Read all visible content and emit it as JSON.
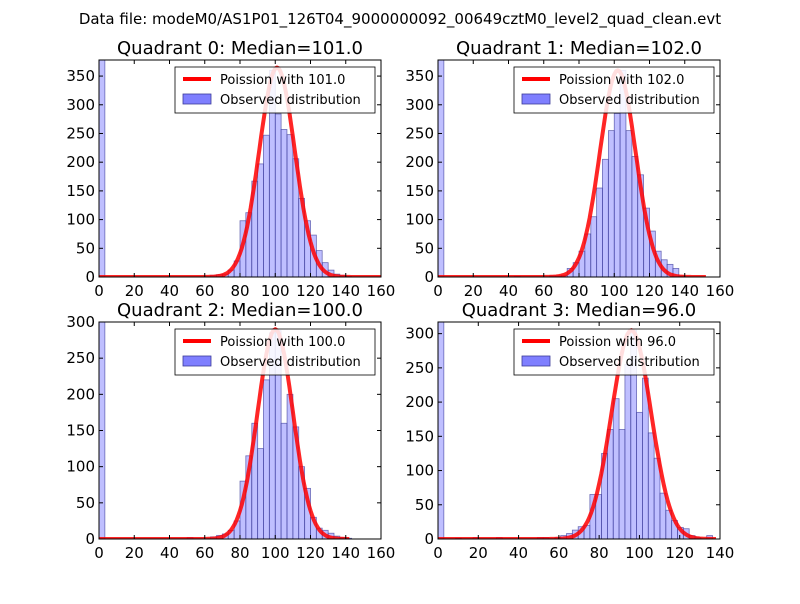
{
  "suptitle": "Data file: modeM0/AS1P01_126T04_9000000092_00649cztM0_level2_quad_clean.evt",
  "colors": {
    "bars": "#7f7fff",
    "bar_edge": "#3c3c9a",
    "curve": "#ff0000"
  },
  "chart_data": [
    {
      "type": "bar",
      "title": "Quadrant 0: Median=101.0",
      "xlim": [
        0,
        160
      ],
      "ylim": [
        0,
        378
      ],
      "xticks": [
        0,
        20,
        40,
        60,
        80,
        100,
        120,
        140,
        160
      ],
      "yticks": [
        0,
        50,
        100,
        150,
        200,
        250,
        300,
        350
      ],
      "bin_width": 3.33,
      "bins": [
        [
          0,
          400
        ],
        [
          63.3,
          3
        ],
        [
          66.7,
          4
        ],
        [
          70,
          5
        ],
        [
          73.3,
          12
        ],
        [
          76.7,
          28
        ],
        [
          80,
          98
        ],
        [
          83.3,
          112
        ],
        [
          86.7,
          167
        ],
        [
          90,
          197
        ],
        [
          93.3,
          247
        ],
        [
          96.7,
          360
        ],
        [
          100,
          284
        ],
        [
          103.3,
          257
        ],
        [
          106.7,
          248
        ],
        [
          110,
          206
        ],
        [
          113.3,
          137
        ],
        [
          116.7,
          98
        ],
        [
          120,
          73
        ],
        [
          123.3,
          46
        ],
        [
          126.7,
          25
        ],
        [
          130,
          12
        ],
        [
          133.3,
          5
        ],
        [
          136.7,
          3
        ],
        [
          140,
          1
        ]
      ],
      "curve": {
        "mean": 101.0,
        "peak": 365,
        "x_end": 160
      },
      "legend": {
        "curve_label": "Poission with 101.0",
        "bar_label": "Observed distribution",
        "position": "upper-right"
      }
    },
    {
      "type": "bar",
      "title": "Quadrant 1: Median=102.0",
      "xlim": [
        0,
        160
      ],
      "ylim": [
        0,
        378
      ],
      "xticks": [
        0,
        20,
        40,
        60,
        80,
        100,
        120,
        140,
        160
      ],
      "yticks": [
        0,
        50,
        100,
        150,
        200,
        250,
        300,
        350
      ],
      "bin_width": 3.33,
      "bins": [
        [
          0,
          400
        ],
        [
          43.3,
          1
        ],
        [
          63.3,
          2
        ],
        [
          66.7,
          2
        ],
        [
          70,
          3
        ],
        [
          73.3,
          15
        ],
        [
          76.7,
          25
        ],
        [
          80,
          45
        ],
        [
          83.3,
          75
        ],
        [
          86.7,
          105
        ],
        [
          90,
          155
        ],
        [
          93.3,
          205
        ],
        [
          96.7,
          255
        ],
        [
          100,
          285
        ],
        [
          103.3,
          360
        ],
        [
          106.7,
          255
        ],
        [
          110,
          210
        ],
        [
          113.3,
          178
        ],
        [
          116.7,
          120
        ],
        [
          120,
          80
        ],
        [
          123.3,
          45
        ],
        [
          126.7,
          30
        ],
        [
          130,
          22
        ],
        [
          133.3,
          15
        ],
        [
          136.7,
          2
        ]
      ],
      "curve": {
        "mean": 102.0,
        "peak": 360,
        "x_end": 152
      },
      "legend": {
        "curve_label": "Poission with 102.0",
        "bar_label": "Observed distribution",
        "position": "upper-right"
      }
    },
    {
      "type": "bar",
      "title": "Quadrant 2: Median=100.0",
      "xlim": [
        0,
        160
      ],
      "ylim": [
        0,
        300
      ],
      "xticks": [
        0,
        20,
        40,
        60,
        80,
        100,
        120,
        140,
        160
      ],
      "yticks": [
        0,
        50,
        100,
        150,
        200,
        250,
        300
      ],
      "bin_width": 3.33,
      "bins": [
        [
          0,
          310
        ],
        [
          50,
          2
        ],
        [
          63.3,
          3
        ],
        [
          66.7,
          5
        ],
        [
          70,
          7
        ],
        [
          73.3,
          12
        ],
        [
          76.7,
          25
        ],
        [
          80,
          80
        ],
        [
          83.3,
          115
        ],
        [
          86.7,
          160
        ],
        [
          90,
          125
        ],
        [
          93.3,
          220
        ],
        [
          96.7,
          285
        ],
        [
          100,
          288
        ],
        [
          103.3,
          160
        ],
        [
          106.7,
          200
        ],
        [
          110,
          155
        ],
        [
          113.3,
          100
        ],
        [
          116.7,
          70
        ],
        [
          120,
          30
        ],
        [
          123.3,
          15
        ],
        [
          126.7,
          12
        ],
        [
          130,
          8
        ],
        [
          133.3,
          4
        ],
        [
          136.7,
          2
        ],
        [
          140,
          1
        ]
      ],
      "curve": {
        "mean": 100.0,
        "peak": 290,
        "x_end": 142
      },
      "legend": {
        "curve_label": "Poission with 100.0",
        "bar_label": "Observed distribution",
        "position": "upper-right"
      }
    },
    {
      "type": "bar",
      "title": "Quadrant 3: Median=96.0",
      "xlim": [
        0,
        140
      ],
      "ylim": [
        0,
        317
      ],
      "xticks": [
        0,
        20,
        40,
        60,
        80,
        100,
        120,
        140
      ],
      "yticks": [
        0,
        50,
        100,
        150,
        200,
        250,
        300
      ],
      "bin_width": 2.9,
      "bins": [
        [
          0,
          330
        ],
        [
          8.7,
          1
        ],
        [
          17.4,
          2
        ],
        [
          29,
          2
        ],
        [
          49.3,
          2
        ],
        [
          52.2,
          2
        ],
        [
          58,
          2
        ],
        [
          60.9,
          5
        ],
        [
          63.8,
          8
        ],
        [
          66.7,
          13
        ],
        [
          69.6,
          18
        ],
        [
          72.5,
          20
        ],
        [
          75.4,
          65
        ],
        [
          78.3,
          65
        ],
        [
          81.2,
          125
        ],
        [
          84.1,
          160
        ],
        [
          87,
          205
        ],
        [
          89.9,
          160
        ],
        [
          92.8,
          255
        ],
        [
          95.7,
          305
        ],
        [
          98.6,
          185
        ],
        [
          101.5,
          235
        ],
        [
          104.4,
          155
        ],
        [
          107.3,
          118
        ],
        [
          110.2,
          67
        ],
        [
          113.1,
          42
        ],
        [
          116,
          27
        ],
        [
          118.9,
          17
        ],
        [
          121.8,
          15
        ],
        [
          124.7,
          5
        ],
        [
          127.6,
          2
        ],
        [
          133.4,
          5
        ]
      ],
      "curve": {
        "mean": 96.0,
        "peak": 305,
        "x_end": 138
      },
      "legend": {
        "curve_label": "Poission with 96.0",
        "bar_label": "Observed distribution",
        "position": "upper-right"
      }
    }
  ]
}
